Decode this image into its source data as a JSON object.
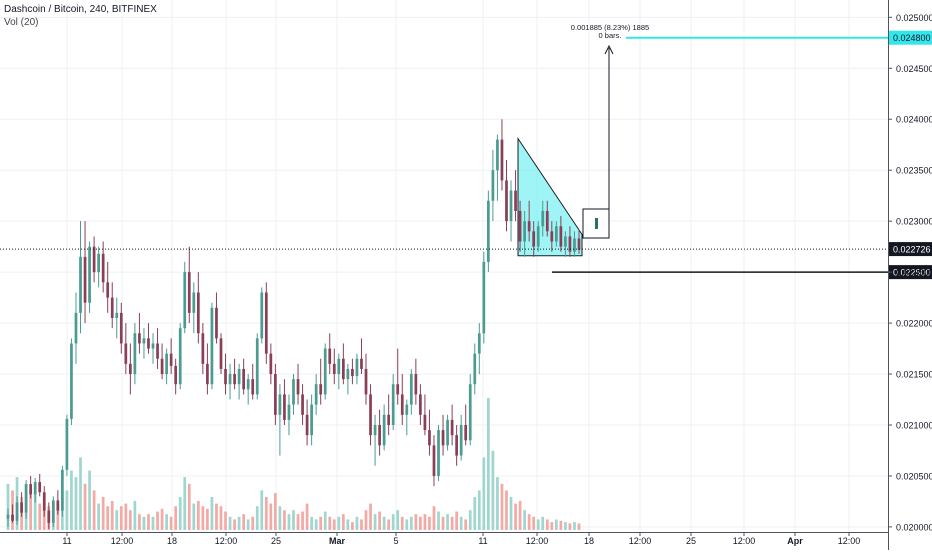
{
  "header": {
    "symbol_line": "Dashcoin / Bitcoin, 240, BITFINEX",
    "volume_label": "Vol (20)"
  },
  "chart_data": {
    "type": "candlestick",
    "y_axis": {
      "ticks": [
        "0.025000",
        "0.024500",
        "0.024000",
        "0.023500",
        "0.023000",
        "0.022500",
        "0.022000",
        "0.021500",
        "0.021000",
        "0.020500",
        "0.020000"
      ],
      "range": [
        0.01995,
        0.02517
      ]
    },
    "x_axis": {
      "ticks": [
        "11",
        "12:00",
        "18",
        "12:00",
        "25",
        "Mar",
        "5",
        "11",
        "12:00",
        "18",
        "12:00",
        "25",
        "12:00",
        "Apr",
        "12:00"
      ]
    },
    "current_price": {
      "label": "0.022726",
      "value": 0.022726
    },
    "level_support": {
      "label": "0.022500",
      "value": 0.0225
    },
    "level_target": {
      "label": "0.024800",
      "value": 0.0248
    },
    "measure": {
      "line1": "0.001885 (8.23%) 1885",
      "line2": "0 bars."
    },
    "colors": {
      "up": "#4a9c93",
      "down": "#8a3f56",
      "vol_up": "#9fd6cf",
      "vol_down": "#f3a9a4",
      "triangle_fill": "#7ff2f2",
      "target_line": "#33e6ec",
      "grid": "#eef0f3"
    },
    "triangle": {
      "top_price": 0.02381,
      "base_price": 0.02266
    },
    "candles": [
      [
        0.02008,
        0.02018,
        0.02,
        0.02012
      ],
      [
        0.02012,
        0.02022,
        0.02004,
        0.02006
      ],
      [
        0.02006,
        0.0203,
        0.02002,
        0.02024
      ],
      [
        0.02024,
        0.02034,
        0.0201,
        0.02014
      ],
      [
        0.02014,
        0.02046,
        0.02008,
        0.02042
      ],
      [
        0.02042,
        0.0205,
        0.02028,
        0.02032
      ],
      [
        0.02032,
        0.02048,
        0.02024,
        0.02044
      ],
      [
        0.02044,
        0.02052,
        0.0203,
        0.02034
      ],
      [
        0.02034,
        0.0204,
        0.0201,
        0.02016
      ],
      [
        0.02016,
        0.02024,
        0.01998,
        0.02004
      ],
      [
        0.02004,
        0.0203,
        0.02,
        0.02026
      ],
      [
        0.02026,
        0.02036,
        0.02012,
        0.02016
      ],
      [
        0.02016,
        0.0206,
        0.0201,
        0.02056
      ],
      [
        0.02056,
        0.0211,
        0.0205,
        0.02106
      ],
      [
        0.02106,
        0.02185,
        0.021,
        0.0218
      ],
      [
        0.0218,
        0.0223,
        0.0216,
        0.0221
      ],
      [
        0.0221,
        0.023,
        0.0219,
        0.02265
      ],
      [
        0.02265,
        0.023,
        0.022,
        0.0222
      ],
      [
        0.0222,
        0.0228,
        0.0221,
        0.02275
      ],
      [
        0.02275,
        0.02285,
        0.0224,
        0.0225
      ],
      [
        0.0225,
        0.02275,
        0.02235,
        0.02268
      ],
      [
        0.02268,
        0.0228,
        0.0223,
        0.0224
      ],
      [
        0.0224,
        0.0226,
        0.0221,
        0.02225
      ],
      [
        0.02225,
        0.0224,
        0.02195,
        0.02205
      ],
      [
        0.02205,
        0.02225,
        0.02185,
        0.0221
      ],
      [
        0.0221,
        0.0222,
        0.0217,
        0.0218
      ],
      [
        0.0218,
        0.022,
        0.0215,
        0.0216
      ],
      [
        0.0216,
        0.0218,
        0.0213,
        0.0215
      ],
      [
        0.0215,
        0.022,
        0.0214,
        0.0219
      ],
      [
        0.0219,
        0.0221,
        0.0217,
        0.0218
      ],
      [
        0.0218,
        0.02195,
        0.02165,
        0.02185
      ],
      [
        0.02185,
        0.022,
        0.0217,
        0.02175
      ],
      [
        0.02175,
        0.0219,
        0.0216,
        0.0218
      ],
      [
        0.0218,
        0.02195,
        0.02155,
        0.02165
      ],
      [
        0.02165,
        0.0218,
        0.02145,
        0.0215
      ],
      [
        0.0215,
        0.02175,
        0.0214,
        0.0217
      ],
      [
        0.0217,
        0.02185,
        0.0215,
        0.02158
      ],
      [
        0.02158,
        0.02165,
        0.0213,
        0.0214
      ],
      [
        0.0214,
        0.022,
        0.02135,
        0.02195
      ],
      [
        0.02195,
        0.0226,
        0.0219,
        0.0225
      ],
      [
        0.0225,
        0.02275,
        0.022,
        0.0221
      ],
      [
        0.0221,
        0.0224,
        0.0219,
        0.0223
      ],
      [
        0.0223,
        0.0225,
        0.0218,
        0.0219
      ],
      [
        0.0219,
        0.022,
        0.0215,
        0.0216
      ],
      [
        0.0216,
        0.0218,
        0.0213,
        0.0214
      ],
      [
        0.0214,
        0.0222,
        0.02135,
        0.02215
      ],
      [
        0.02215,
        0.0223,
        0.0218,
        0.02185
      ],
      [
        0.02185,
        0.0219,
        0.0215,
        0.02155
      ],
      [
        0.02155,
        0.0217,
        0.0213,
        0.0214
      ],
      [
        0.0214,
        0.0216,
        0.02125,
        0.0215
      ],
      [
        0.0215,
        0.02165,
        0.02135,
        0.0214
      ],
      [
        0.0214,
        0.0216,
        0.02125,
        0.02155
      ],
      [
        0.02155,
        0.02165,
        0.0213,
        0.02135
      ],
      [
        0.02135,
        0.0215,
        0.0212,
        0.02145
      ],
      [
        0.02145,
        0.0216,
        0.02125,
        0.0213
      ],
      [
        0.0213,
        0.0219,
        0.02125,
        0.02185
      ],
      [
        0.02185,
        0.02235,
        0.0218,
        0.0223
      ],
      [
        0.0223,
        0.0224,
        0.0216,
        0.0217
      ],
      [
        0.0217,
        0.0218,
        0.0214,
        0.0215
      ],
      [
        0.0215,
        0.0216,
        0.021,
        0.0211
      ],
      [
        0.0211,
        0.0214,
        0.0207,
        0.0213
      ],
      [
        0.0213,
        0.02145,
        0.021,
        0.02105
      ],
      [
        0.02105,
        0.0213,
        0.0209,
        0.0212
      ],
      [
        0.0212,
        0.0215,
        0.0211,
        0.02145
      ],
      [
        0.02145,
        0.0216,
        0.0212,
        0.0213
      ],
      [
        0.0213,
        0.0214,
        0.021,
        0.0211
      ],
      [
        0.0211,
        0.02125,
        0.0208,
        0.0209
      ],
      [
        0.0209,
        0.0213,
        0.0208,
        0.0212
      ],
      [
        0.0212,
        0.0215,
        0.0211,
        0.0214
      ],
      [
        0.0214,
        0.02165,
        0.0212,
        0.0213
      ],
      [
        0.0213,
        0.0218,
        0.02125,
        0.02175
      ],
      [
        0.02175,
        0.0219,
        0.0215,
        0.0216
      ],
      [
        0.0216,
        0.02175,
        0.0214,
        0.0215
      ],
      [
        0.0215,
        0.0217,
        0.02135,
        0.02165
      ],
      [
        0.02165,
        0.0218,
        0.0214,
        0.02145
      ],
      [
        0.02145,
        0.0216,
        0.0213,
        0.02155
      ],
      [
        0.02155,
        0.02165,
        0.0214,
        0.02148
      ],
      [
        0.02148,
        0.0217,
        0.0214,
        0.02165
      ],
      [
        0.02165,
        0.02185,
        0.0215,
        0.02155
      ],
      [
        0.02155,
        0.0217,
        0.0212,
        0.0213
      ],
      [
        0.0213,
        0.0214,
        0.0208,
        0.0209
      ],
      [
        0.0209,
        0.0211,
        0.0206,
        0.021
      ],
      [
        0.021,
        0.02115,
        0.0207,
        0.0208
      ],
      [
        0.0208,
        0.0212,
        0.02075,
        0.0211
      ],
      [
        0.0211,
        0.0213,
        0.0209,
        0.021
      ],
      [
        0.021,
        0.0215,
        0.02095,
        0.0214
      ],
      [
        0.0214,
        0.02175,
        0.0212,
        0.0213
      ],
      [
        0.0213,
        0.0215,
        0.021,
        0.0211
      ],
      [
        0.0211,
        0.02125,
        0.0209,
        0.0212
      ],
      [
        0.0212,
        0.02155,
        0.0211,
        0.0215
      ],
      [
        0.0215,
        0.02165,
        0.0212,
        0.0213
      ],
      [
        0.0213,
        0.0214,
        0.021,
        0.0211
      ],
      [
        0.0211,
        0.0213,
        0.0209,
        0.02095
      ],
      [
        0.02095,
        0.02115,
        0.0207,
        0.0208
      ],
      [
        0.0208,
        0.0209,
        0.0204,
        0.0205
      ],
      [
        0.0205,
        0.021,
        0.02045,
        0.02095
      ],
      [
        0.02095,
        0.0211,
        0.0207,
        0.0208
      ],
      [
        0.0208,
        0.0211,
        0.02075,
        0.02105
      ],
      [
        0.02105,
        0.0212,
        0.0208,
        0.0209
      ],
      [
        0.0209,
        0.021,
        0.0206,
        0.0207
      ],
      [
        0.0207,
        0.0211,
        0.02065,
        0.021
      ],
      [
        0.021,
        0.0212,
        0.0208,
        0.02085
      ],
      [
        0.02085,
        0.0215,
        0.0208,
        0.0214
      ],
      [
        0.0214,
        0.0218,
        0.0213,
        0.0217
      ],
      [
        0.0217,
        0.022,
        0.0215,
        0.0219
      ],
      [
        0.0219,
        0.0227,
        0.0218,
        0.0226
      ],
      [
        0.0226,
        0.0233,
        0.0225,
        0.0232
      ],
      [
        0.0232,
        0.0237,
        0.023,
        0.0235
      ],
      [
        0.0235,
        0.02385,
        0.0232,
        0.0238
      ],
      [
        0.0238,
        0.024,
        0.0233,
        0.0234
      ],
      [
        0.0234,
        0.0236,
        0.0229,
        0.023
      ],
      [
        0.023,
        0.0234,
        0.0228,
        0.0233
      ],
      [
        0.0233,
        0.0235,
        0.023,
        0.0231
      ],
      [
        0.0231,
        0.0232,
        0.0227,
        0.0228
      ],
      [
        0.0228,
        0.0231,
        0.02265,
        0.023
      ],
      [
        0.023,
        0.0232,
        0.0228,
        0.0229
      ],
      [
        0.0229,
        0.023,
        0.02265,
        0.02275
      ],
      [
        0.02275,
        0.023,
        0.0227,
        0.02295
      ],
      [
        0.02295,
        0.0232,
        0.02285,
        0.0231
      ],
      [
        0.0231,
        0.0232,
        0.02285,
        0.0229
      ],
      [
        0.0229,
        0.023,
        0.0227,
        0.0228
      ],
      [
        0.0228,
        0.023,
        0.02275,
        0.02295
      ],
      [
        0.02295,
        0.02305,
        0.0227,
        0.02275
      ],
      [
        0.02275,
        0.0229,
        0.02265,
        0.02285
      ],
      [
        0.02285,
        0.02295,
        0.02265,
        0.0227
      ],
      [
        0.0227,
        0.0229,
        0.02265,
        0.02283
      ],
      [
        0.02283,
        0.02292,
        0.02268,
        0.02272
      ]
    ],
    "volumes": [
      [
        0.35,
        1
      ],
      [
        0.3,
        0
      ],
      [
        0.4,
        1
      ],
      [
        0.25,
        0
      ],
      [
        0.35,
        1
      ],
      [
        0.3,
        0
      ],
      [
        0.28,
        1
      ],
      [
        0.2,
        0
      ],
      [
        0.15,
        0
      ],
      [
        0.18,
        0
      ],
      [
        0.22,
        1
      ],
      [
        0.2,
        0
      ],
      [
        0.25,
        1
      ],
      [
        0.3,
        1
      ],
      [
        0.45,
        1
      ],
      [
        0.4,
        1
      ],
      [
        0.55,
        1
      ],
      [
        0.35,
        0
      ],
      [
        0.45,
        1
      ],
      [
        0.3,
        0
      ],
      [
        0.2,
        1
      ],
      [
        0.25,
        0
      ],
      [
        0.18,
        0
      ],
      [
        0.22,
        0
      ],
      [
        0.15,
        1
      ],
      [
        0.18,
        0
      ],
      [
        0.2,
        0
      ],
      [
        0.15,
        0
      ],
      [
        0.22,
        1
      ],
      [
        0.12,
        0
      ],
      [
        0.1,
        1
      ],
      [
        0.12,
        0
      ],
      [
        0.1,
        1
      ],
      [
        0.14,
        0
      ],
      [
        0.16,
        0
      ],
      [
        0.12,
        1
      ],
      [
        0.1,
        0
      ],
      [
        0.18,
        0
      ],
      [
        0.25,
        1
      ],
      [
        0.4,
        1
      ],
      [
        0.35,
        0
      ],
      [
        0.2,
        1
      ],
      [
        0.22,
        0
      ],
      [
        0.18,
        0
      ],
      [
        0.16,
        0
      ],
      [
        0.25,
        1
      ],
      [
        0.2,
        0
      ],
      [
        0.18,
        0
      ],
      [
        0.14,
        0
      ],
      [
        0.1,
        1
      ],
      [
        0.08,
        0
      ],
      [
        0.1,
        1
      ],
      [
        0.12,
        0
      ],
      [
        0.08,
        1
      ],
      [
        0.1,
        0
      ],
      [
        0.18,
        1
      ],
      [
        0.3,
        1
      ],
      [
        0.25,
        0
      ],
      [
        0.2,
        0
      ],
      [
        0.28,
        0
      ],
      [
        0.18,
        1
      ],
      [
        0.15,
        0
      ],
      [
        0.12,
        1
      ],
      [
        0.15,
        1
      ],
      [
        0.12,
        0
      ],
      [
        0.14,
        0
      ],
      [
        0.2,
        0
      ],
      [
        0.1,
        1
      ],
      [
        0.08,
        1
      ],
      [
        0.1,
        0
      ],
      [
        0.14,
        1
      ],
      [
        0.1,
        0
      ],
      [
        0.08,
        0
      ],
      [
        0.1,
        1
      ],
      [
        0.12,
        0
      ],
      [
        0.08,
        1
      ],
      [
        0.06,
        0
      ],
      [
        0.1,
        1
      ],
      [
        0.08,
        0
      ],
      [
        0.15,
        0
      ],
      [
        0.2,
        0
      ],
      [
        0.12,
        1
      ],
      [
        0.14,
        0
      ],
      [
        0.1,
        1
      ],
      [
        0.08,
        0
      ],
      [
        0.12,
        1
      ],
      [
        0.15,
        1
      ],
      [
        0.1,
        0
      ],
      [
        0.08,
        1
      ],
      [
        0.1,
        1
      ],
      [
        0.12,
        0
      ],
      [
        0.1,
        0
      ],
      [
        0.12,
        0
      ],
      [
        0.1,
        0
      ],
      [
        0.18,
        0
      ],
      [
        0.14,
        1
      ],
      [
        0.1,
        0
      ],
      [
        0.12,
        1
      ],
      [
        0.1,
        0
      ],
      [
        0.14,
        0
      ],
      [
        0.1,
        1
      ],
      [
        0.08,
        0
      ],
      [
        0.15,
        1
      ],
      [
        0.25,
        1
      ],
      [
        0.3,
        1
      ],
      [
        0.55,
        1
      ],
      [
        1.0,
        1
      ],
      [
        0.6,
        1
      ],
      [
        0.4,
        1
      ],
      [
        0.35,
        0
      ],
      [
        0.3,
        0
      ],
      [
        0.25,
        1
      ],
      [
        0.2,
        0
      ],
      [
        0.22,
        0
      ],
      [
        0.15,
        1
      ],
      [
        0.12,
        0
      ],
      [
        0.1,
        0
      ],
      [
        0.08,
        1
      ],
      [
        0.1,
        1
      ],
      [
        0.08,
        0
      ],
      [
        0.06,
        0
      ],
      [
        0.08,
        1
      ],
      [
        0.07,
        0
      ],
      [
        0.06,
        1
      ],
      [
        0.05,
        0
      ],
      [
        0.06,
        1
      ],
      [
        0.05,
        0
      ]
    ]
  }
}
